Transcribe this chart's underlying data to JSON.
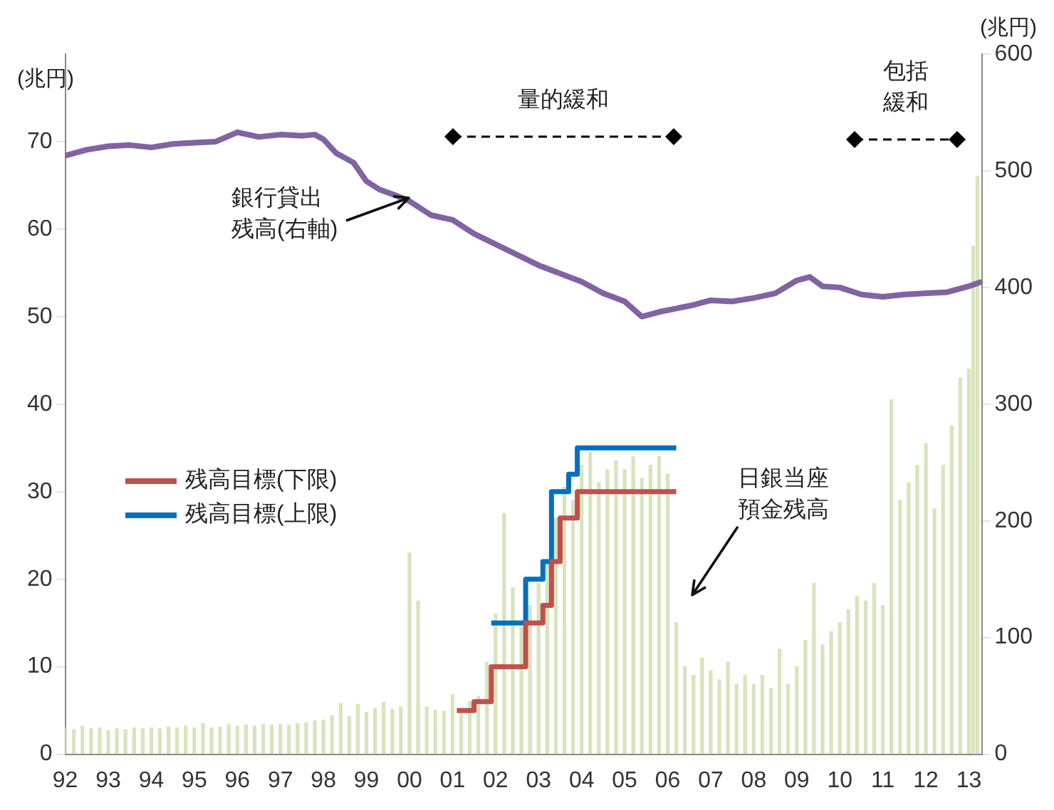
{
  "chart_data": {
    "type": "bar",
    "ylabel": "(兆円)",
    "y2label": "(兆円)",
    "xlim": [
      1992,
      2013.3
    ],
    "xticks": [
      {
        "value": 1992,
        "label": "92"
      },
      {
        "value": 1993,
        "label": "93"
      },
      {
        "value": 1994,
        "label": "94"
      },
      {
        "value": 1995,
        "label": "95"
      },
      {
        "value": 1996,
        "label": "96"
      },
      {
        "value": 1997,
        "label": "97"
      },
      {
        "value": 1998,
        "label": "98"
      },
      {
        "value": 1999,
        "label": "99"
      },
      {
        "value": 2000,
        "label": "00"
      },
      {
        "value": 2001,
        "label": "01"
      },
      {
        "value": 2002,
        "label": "02"
      },
      {
        "value": 2003,
        "label": "03"
      },
      {
        "value": 2004,
        "label": "04"
      },
      {
        "value": 2005,
        "label": "05"
      },
      {
        "value": 2006,
        "label": "06"
      },
      {
        "value": 2007,
        "label": "07"
      },
      {
        "value": 2008,
        "label": "08"
      },
      {
        "value": 2009,
        "label": "09"
      },
      {
        "value": 2010,
        "label": "10"
      },
      {
        "value": 2011,
        "label": "11"
      },
      {
        "value": 2012,
        "label": "12"
      },
      {
        "value": 2013,
        "label": "13"
      }
    ],
    "ylim": [
      0,
      80
    ],
    "yticks": [
      0,
      10,
      20,
      30,
      40,
      50,
      60,
      70
    ],
    "y2lim": [
      0,
      600
    ],
    "y2ticks": [
      0,
      100,
      200,
      300,
      400,
      500,
      600
    ],
    "series": [
      {
        "color": "#d7e4bd",
        "x": [
          1992.0,
          1992.2,
          1992.4,
          1992.6,
          1992.8,
          1993.0,
          1993.2,
          1993.4,
          1993.6,
          1993.8,
          1994.0,
          1994.2,
          1994.4,
          1994.6,
          1994.8,
          1995.0,
          1995.2,
          1995.4,
          1995.6,
          1995.8,
          1996.0,
          1996.2,
          1996.4,
          1996.6,
          1996.8,
          1997.0,
          1997.2,
          1997.4,
          1997.6,
          1997.8,
          1998.0,
          1998.2,
          1998.4,
          1998.6,
          1998.8,
          1999.0,
          1999.2,
          1999.4,
          1999.6,
          1999.8,
          2000.0,
          2000.2,
          2000.4,
          2000.6,
          2000.8,
          2001.0,
          2001.2,
          2001.4,
          2001.6,
          2001.8,
          2002.0,
          2002.2,
          2002.4,
          2002.6,
          2002.8,
          2003.0,
          2003.2,
          2003.4,
          2003.6,
          2003.8,
          2004.0,
          2004.2,
          2004.4,
          2004.6,
          2004.8,
          2005.0,
          2005.2,
          2005.4,
          2005.6,
          2005.8,
          2006.0,
          2006.2,
          2006.4,
          2006.6,
          2006.8,
          2007.0,
          2007.2,
          2007.4,
          2007.6,
          2007.8,
          2008.0,
          2008.2,
          2008.4,
          2008.6,
          2008.8,
          2009.0,
          2009.2,
          2009.4,
          2009.6,
          2009.8,
          2010.0,
          2010.2,
          2010.4,
          2010.6,
          2010.8,
          2011.0,
          2011.2,
          2011.4,
          2011.6,
          2011.8,
          2012.0,
          2012.2,
          2012.4,
          2012.6,
          2012.8,
          2013.0,
          2013.1,
          2013.2
        ],
        "values": [
          3.0,
          2.8,
          3.2,
          2.9,
          3.0,
          2.7,
          2.9,
          2.8,
          3.0,
          2.9,
          3.0,
          2.9,
          3.1,
          3.0,
          3.2,
          3.0,
          3.5,
          3.0,
          3.1,
          3.4,
          3.2,
          3.3,
          3.2,
          3.4,
          3.3,
          3.4,
          3.3,
          3.5,
          3.6,
          3.8,
          3.9,
          4.4,
          5.8,
          4.3,
          5.7,
          4.8,
          5.2,
          5.9,
          5.1,
          5.4,
          23.0,
          17.5,
          5.4,
          5.0,
          4.9,
          6.8,
          5.2,
          6.0,
          6.6,
          10.5,
          16.0,
          27.5,
          19.0,
          14.5,
          17.0,
          19.5,
          22.0,
          27.0,
          30.5,
          29.0,
          33.0,
          34.5,
          31.0,
          32.5,
          33.5,
          32.5,
          34.0,
          31.5,
          33.0,
          34.0,
          32.0,
          15.0,
          10.0,
          9.0,
          11.0,
          9.5,
          8.5,
          10.5,
          8.0,
          9.0,
          8.0,
          9.0,
          7.5,
          12.0,
          8.0,
          10.0,
          13.0,
          19.5,
          12.5,
          14.0,
          15.0,
          16.5,
          18.0,
          17.5,
          19.5,
          17.0,
          40.5,
          29.0,
          31.0,
          33.0,
          35.5,
          28.0,
          33.0,
          37.5,
          43.0,
          44.0,
          58.0,
          66.0
        ]
      },
      {
        "type": "line",
        "axis": "y2",
        "color": "#8064a2",
        "x": [
          1992.0,
          1992.5,
          1993.0,
          1993.5,
          1994.0,
          1994.5,
          1995.0,
          1995.5,
          1996.0,
          1996.5,
          1997.0,
          1997.5,
          1997.8,
          1998.0,
          1998.3,
          1998.7,
          1999.0,
          1999.3,
          1999.6,
          2000.0,
          2000.5,
          2001.0,
          2001.5,
          2002.0,
          2002.5,
          2003.0,
          2003.5,
          2004.0,
          2004.5,
          2005.0,
          2005.4,
          2005.8,
          2006.2,
          2006.6,
          2007.0,
          2007.5,
          2008.0,
          2008.5,
          2009.0,
          2009.3,
          2009.6,
          2010.0,
          2010.5,
          2011.0,
          2011.5,
          2012.0,
          2012.5,
          2013.0,
          2013.3
        ],
        "values": [
          513,
          518,
          521,
          522,
          520,
          523,
          524,
          525,
          533,
          529,
          531,
          530,
          531,
          527,
          515,
          507,
          491,
          484,
          480,
          474,
          462,
          458,
          446,
          437,
          428,
          419,
          412,
          405,
          395,
          388,
          375,
          379,
          382,
          385,
          389,
          388,
          391,
          395,
          406,
          409,
          401,
          400,
          394,
          392,
          394,
          395,
          396,
          401,
          405
        ]
      },
      {
        "type": "step",
        "name": "残高目標(下限)",
        "color": "#c0504d",
        "x": [
          2001.1,
          2001.5,
          2001.9,
          2002.7,
          2003.1,
          2003.3,
          2003.5,
          2003.9,
          2006.2
        ],
        "values": [
          5,
          6,
          10,
          15,
          17,
          22,
          27,
          30,
          30
        ]
      },
      {
        "type": "step",
        "name": "残高目標(上限)",
        "color": "#0070c0",
        "x": [
          2001.9,
          2002.7,
          2003.1,
          2003.3,
          2003.7,
          2003.9,
          2006.2
        ],
        "values": [
          15,
          20,
          22,
          30,
          32,
          35,
          35
        ]
      }
    ],
    "annotations": [
      {
        "text": "銀行貸出残高(右軸)",
        "x": 2000.0,
        "y": 63.5
      },
      "日銀当座預金残高",
      "量的緩和",
      "包括緩和"
    ],
    "legend": "left",
    "grid": false,
    "marker": "none",
    "line_style": "solid"
  }
}
